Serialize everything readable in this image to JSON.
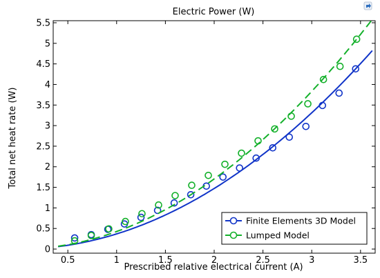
{
  "chart_data": {
    "type": "line",
    "title": "Electric Power (W)",
    "xlabel": "Prescribed relative electrical current (A)",
    "ylabel": "Total net heat rate (W)",
    "xlim": [
      0.35,
      3.65
    ],
    "ylim": [
      -0.1,
      5.55
    ],
    "xticks": [
      "0.5",
      "1",
      "1.5",
      "2",
      "2.5",
      "3",
      "3.5"
    ],
    "yticks": [
      "0",
      "0.5",
      "1",
      "1.5",
      "2",
      "2.5",
      "3",
      "3.5",
      "4",
      "4.5",
      "5",
      "5.5"
    ],
    "grid": false,
    "legend_position": "bottom-right",
    "series": [
      {
        "name": "Finite Elements 3D Model",
        "color": "#1034c8",
        "line_style": "solid",
        "marker": "circle",
        "x": [
          0.57,
          0.74,
          0.91,
          1.08,
          1.25,
          1.42,
          1.59,
          1.76,
          1.92,
          2.09,
          2.26,
          2.43,
          2.6,
          2.77,
          2.94,
          3.11,
          3.28,
          3.45
        ],
        "y": [
          0.27,
          0.35,
          0.48,
          0.61,
          0.77,
          0.94,
          1.12,
          1.32,
          1.53,
          1.75,
          1.97,
          2.21,
          2.46,
          2.72,
          2.98,
          3.49,
          3.79,
          4.38
        ]
      },
      {
        "name": "Lumped Model",
        "color": "#13b02a",
        "line_style": "dashed",
        "marker": "circle",
        "x": [
          0.57,
          0.74,
          0.92,
          1.09,
          1.26,
          1.43,
          1.6,
          1.77,
          1.94,
          2.11,
          2.28,
          2.45,
          2.62,
          2.79,
          2.96,
          3.12,
          3.29,
          3.46
        ],
        "y": [
          0.2,
          0.33,
          0.49,
          0.67,
          0.86,
          1.07,
          1.3,
          1.55,
          1.79,
          2.06,
          2.33,
          2.63,
          2.92,
          3.23,
          3.53,
          4.12,
          4.44,
          5.1
        ]
      }
    ]
  },
  "corner_icon": "image-export-icon"
}
